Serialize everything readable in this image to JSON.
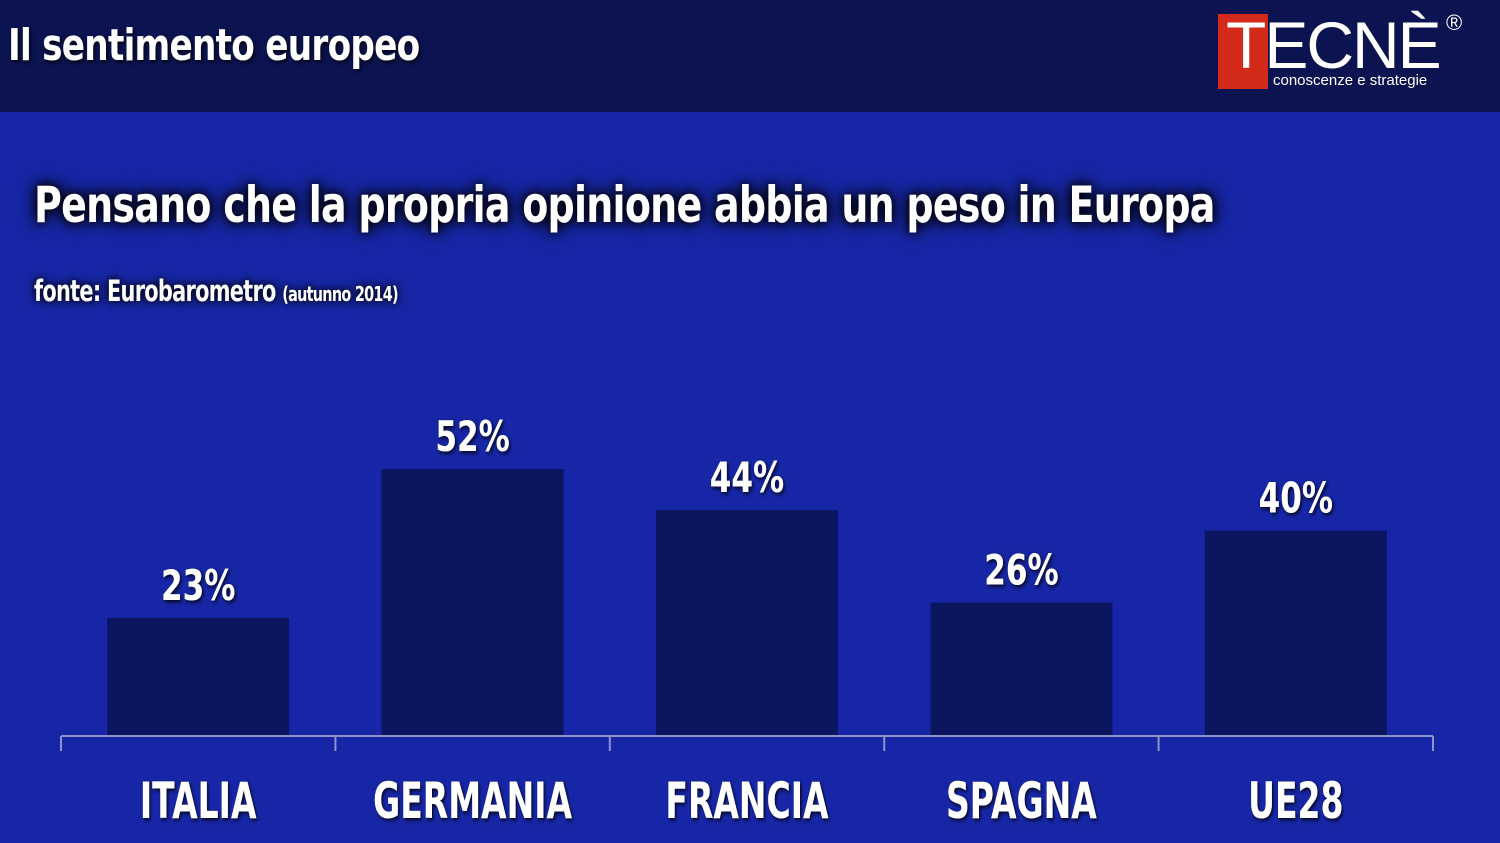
{
  "header": {
    "title": "Il sentimento europeo"
  },
  "logo": {
    "word": "TECNÈ",
    "tagline": "conoscenze e strategie",
    "registered": "®"
  },
  "colors": {
    "background": "#1626a6",
    "topbar": "#0b1350",
    "bar": "#0b1560",
    "axis": "#8c93c8",
    "logo_red": "#d42a1a"
  },
  "chart_data": {
    "type": "bar",
    "title": "Pensano che la propria opinione abbia un peso in Europa",
    "source": "fonte: Eurobarometro",
    "source_note": "(autunno 2014)",
    "categories": [
      "ITALIA",
      "GERMANIA",
      "FRANCIA",
      "SPAGNA",
      "UE28"
    ],
    "values": [
      23,
      52,
      44,
      26,
      40
    ],
    "value_labels": [
      "23%",
      "52%",
      "44%",
      "26%",
      "40%"
    ],
    "xlabel": "",
    "ylabel": "",
    "ylim": [
      0,
      60
    ],
    "grid": false,
    "legend": "none"
  }
}
